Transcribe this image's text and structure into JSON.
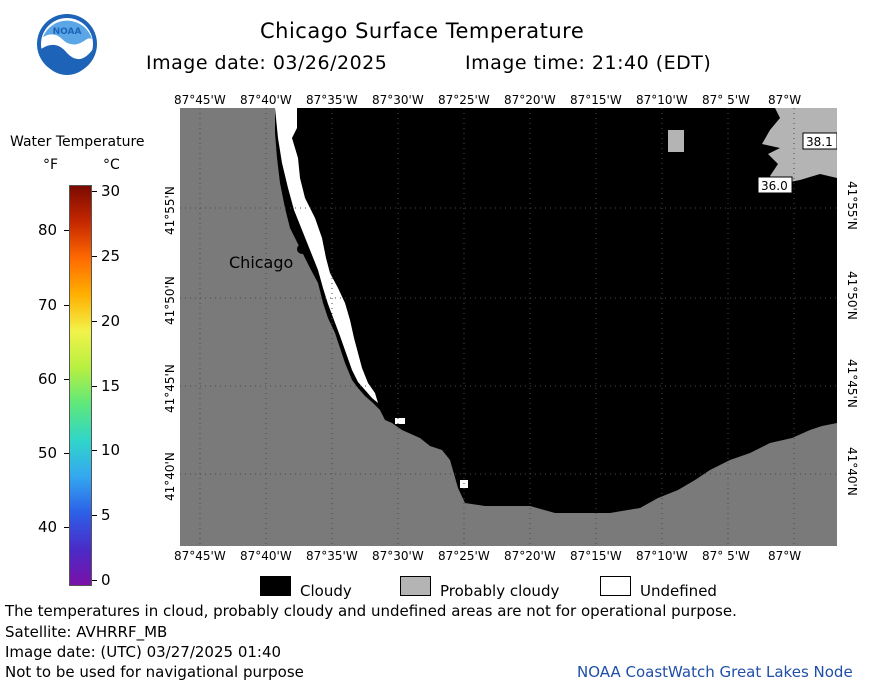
{
  "header": {
    "logo_text": "NOAA",
    "title": "Chicago Surface Temperature",
    "image_date_label": "Image date: 03/26/2025",
    "image_time_label": "Image time: 21:40 (EDT)"
  },
  "colorbar": {
    "title": "Water Temperature",
    "unit_f": "°F",
    "unit_c": "°C",
    "f_ticks": [
      "80",
      "70",
      "60",
      "50",
      "40"
    ],
    "c_ticks": [
      "30",
      "25",
      "20",
      "15",
      "10",
      "5",
      "0"
    ],
    "colors": [
      "#7a0a00",
      "#c62800",
      "#ff6a00",
      "#ffb000",
      "#f2f24a",
      "#b8f040",
      "#5fe87a",
      "#30d6c8",
      "#34a8f0",
      "#2c60e8",
      "#4a2cc8",
      "#7a10a8"
    ]
  },
  "map": {
    "lon_labels": [
      "87°45'W",
      "87°40'W",
      "87°35'W",
      "87°30'W",
      "87°25'W",
      "87°20'W",
      "87°15'W",
      "87°10'W",
      "87° 5'W",
      "87°W"
    ],
    "lat_labels": [
      "41°55'N",
      "41°50'N",
      "41°45'N",
      "41°40'N"
    ],
    "city_label": "Chicago",
    "temp_labels": [
      "38.1",
      "36.0"
    ],
    "colors": {
      "land": "#7a7a7a",
      "cloudy": "#000000",
      "probably_cloudy": "#b4b4b4",
      "undefined": "#ffffff",
      "grid": "#4a4a4a"
    }
  },
  "legend": {
    "items": [
      {
        "label": "Cloudy",
        "color": "#000000"
      },
      {
        "label": "Probably cloudy",
        "color": "#b4b4b4"
      },
      {
        "label": "Undefined",
        "color": "#ffffff"
      }
    ]
  },
  "footer": {
    "disclaimer": "The temperatures in cloud, probably cloudy and undefined areas are not for operational purpose.",
    "satellite": "Satellite: AVHRRF_MB",
    "utc_date": "Image date: (UTC) 03/27/2025  01:40",
    "nav_warning": "Not to be used for navigational purpose",
    "credit": "NOAA CoastWatch Great Lakes Node",
    "credit_color": "#1f4fa8"
  }
}
